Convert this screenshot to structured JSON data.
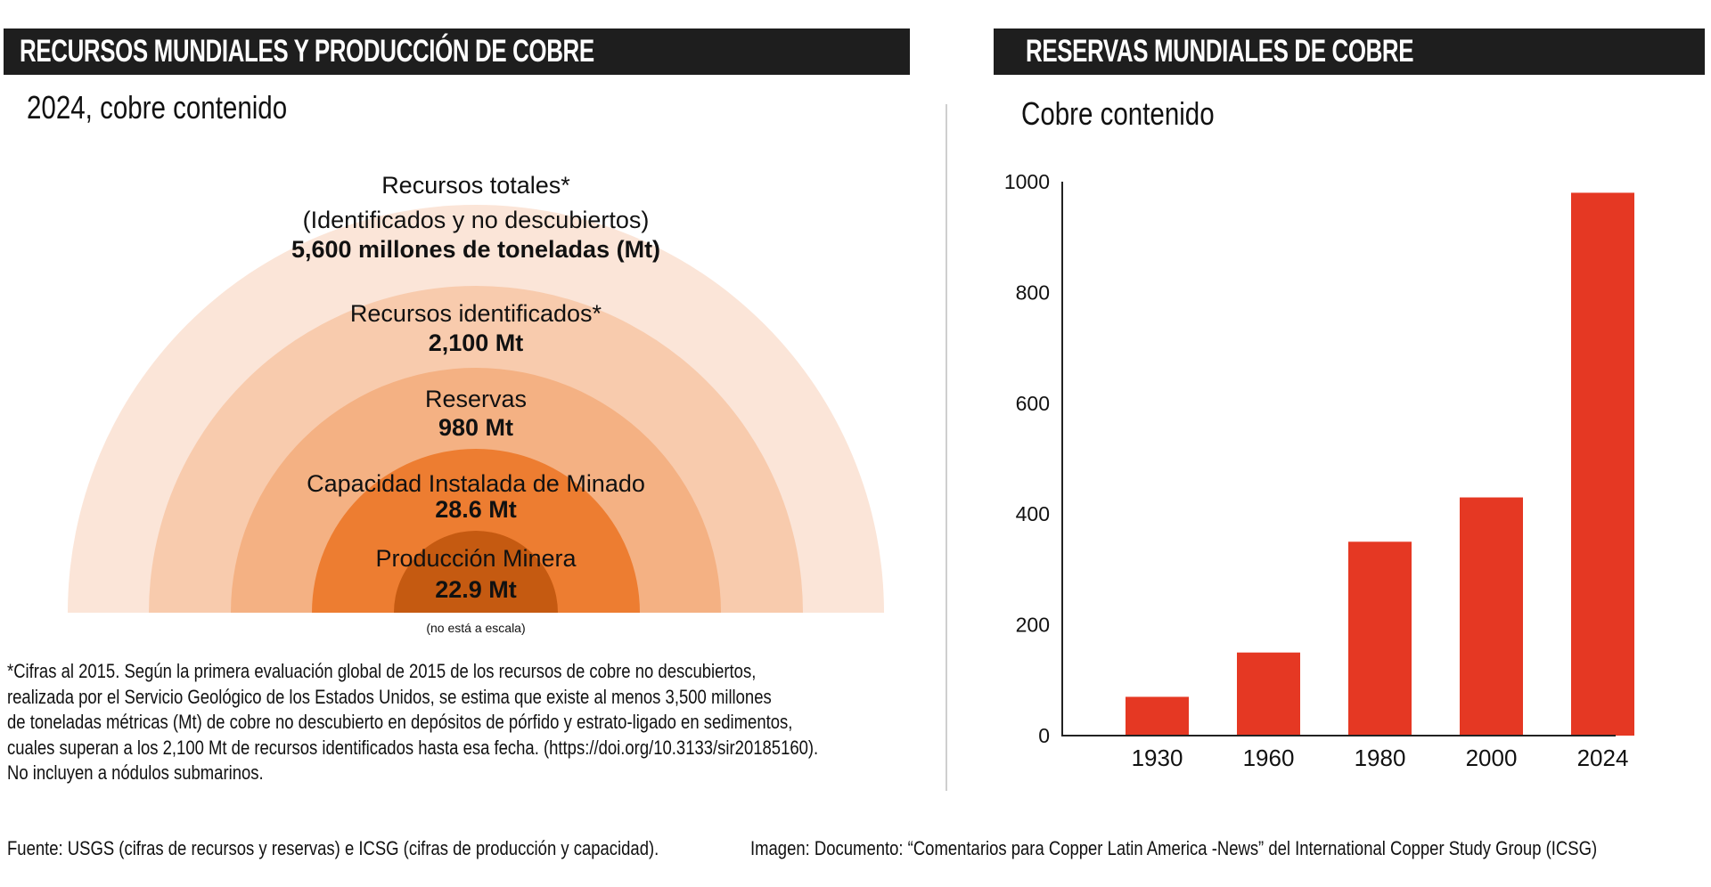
{
  "left_panel": {
    "title": "RECURSOS MUNDIALES Y PRODUCCIÓN DE COBRE",
    "subtitle": "2024, cobre contenido",
    "rings": [
      {
        "label": "Recursos totales*",
        "sublabel": "(Identificados y no descubiertos)",
        "value": "5,600 millones de toneladas (Mt)",
        "color": "#fbe5d8"
      },
      {
        "label": "Recursos identificados*",
        "value": "2,100 Mt",
        "color": "#f8cbad"
      },
      {
        "label": "Reservas",
        "value": "980 Mt",
        "color": "#f4b183"
      },
      {
        "label": "Capacidad Instalada de Minado",
        "value": "28.6 Mt",
        "color": "#ed7d31"
      },
      {
        "label": "Producción Minera",
        "value": "22.9 Mt",
        "color": "#c55a11"
      }
    ],
    "scale_note": "(no está a escala)",
    "footnote": [
      "*Cifras al 2015. Según la primera evaluación global de 2015 de los recursos de cobre no descubiertos,",
      "realizada por el Servicio Geológico de los Estados Unidos, se estima que existe al menos 3,500 millones",
      "de toneladas métricas (Mt) de cobre no descubierto en depósitos de pórfido y estrato-ligado en sedimentos,",
      "cuales superan a los 2,100 Mt de recursos identificados hasta esa fecha. (https://doi.org/10.3133/sir20185160).",
      "No incluyen a nódulos submarinos."
    ]
  },
  "right_panel": {
    "title": "RESERVAS MUNDIALES DE COBRE",
    "subtitle": "Cobre contenido"
  },
  "chart_data": {
    "type": "bar",
    "title": "RESERVAS MUNDIALES DE COBRE",
    "subtitle": "Cobre contenido",
    "xlabel": "",
    "ylabel": "",
    "categories": [
      "1930",
      "1960",
      "1980",
      "2000",
      "2024"
    ],
    "values": [
      70,
      150,
      350,
      430,
      980
    ],
    "ylim": [
      0,
      1000
    ],
    "yticks": [
      0,
      200,
      400,
      600,
      800,
      1000
    ],
    "ytick_labels": [
      "0",
      "200",
      "400",
      "600",
      "800",
      "1000"
    ],
    "grid": false,
    "bar_color": "#e53823"
  },
  "footer": {
    "source": "Fuente: USGS (cifras de recursos y reservas) e ICSG (cifras de producción y capacidad).",
    "image_credit": "Imagen: Documento: “Comentarios para Copper Latin America -News” del International Copper Study Group (ICSG)"
  }
}
